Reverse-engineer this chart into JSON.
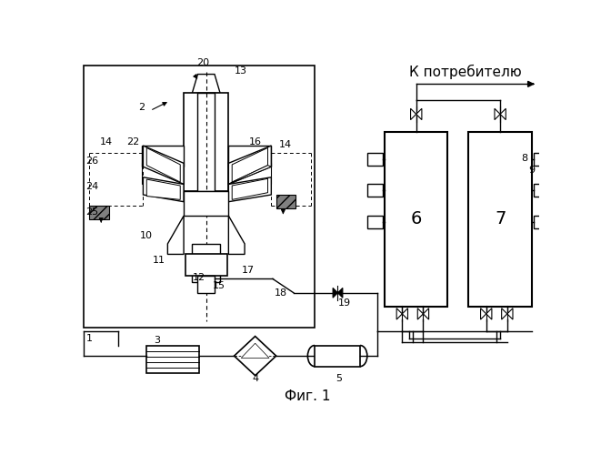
{
  "title": "Фиг. 1",
  "subtitle": "К потребителю",
  "bg_color": "#ffffff",
  "line_color": "#000000",
  "fig_width": 6.61,
  "fig_height": 5.0,
  "dpi": 100
}
